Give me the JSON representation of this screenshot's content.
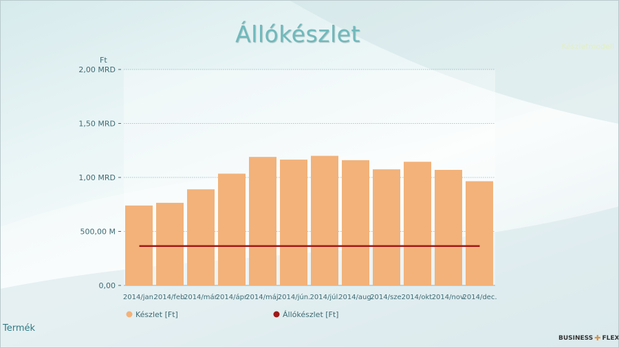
{
  "title": "Állókészlet",
  "top_right_label": "Készletmodell",
  "filter_label": "Termék",
  "logo": {
    "left": "BUSINESS",
    "right": "FLEX"
  },
  "colors": {
    "bar": "#f2b27a",
    "line": "#a01818",
    "grid": "#4f9a9f",
    "axis_text": "#3d6b73"
  },
  "chart_data": {
    "type": "bar",
    "title": "Állókészlet",
    "ylabel": "Ft",
    "ylim": [
      0,
      2000000000
    ],
    "yticks": [
      {
        "value": 0,
        "label": "0,00"
      },
      {
        "value": 500000000,
        "label": "500,00 M"
      },
      {
        "value": 1000000000,
        "label": "1,00 MRD"
      },
      {
        "value": 1500000000,
        "label": "1,50 MRD"
      },
      {
        "value": 2000000000,
        "label": "2,00 MRD"
      }
    ],
    "categories": [
      "2014/jan.",
      "2014/feb.",
      "2014/már.",
      "2014/ápr.",
      "2014/máj.",
      "2014/jún.",
      "2014/júl.",
      "2014/aug.",
      "2014/sze.",
      "2014/okt.",
      "2014/nov.",
      "2014/dec."
    ],
    "series": [
      {
        "name": "Készlet [Ft]",
        "type": "bar",
        "values": [
          740000000,
          765000000,
          890000000,
          1035000000,
          1190000000,
          1165000000,
          1200000000,
          1160000000,
          1075000000,
          1145000000,
          1070000000,
          965000000
        ]
      },
      {
        "name": "Állókészlet [Ft]",
        "type": "line",
        "values": [
          365000000,
          365000000,
          365000000,
          365000000,
          365000000,
          365000000,
          365000000,
          365000000,
          365000000,
          365000000,
          365000000,
          365000000
        ]
      }
    ],
    "grid": true,
    "legend_position": "bottom"
  }
}
